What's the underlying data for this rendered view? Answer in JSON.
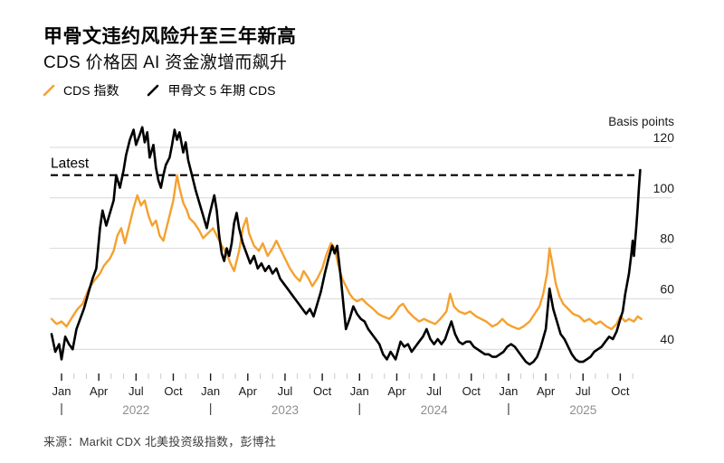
{
  "header": {
    "title": "甲骨文违约风险升至三年新高",
    "subtitle": "CDS 价格因 AI 资金激增而飙升"
  },
  "legend": [
    {
      "label": "CDS 指数",
      "color": "#F5A12F"
    },
    {
      "label": "甲骨文 5 年期 CDS",
      "color": "#000000"
    }
  ],
  "axis": {
    "unit_label": "Basis points",
    "y_ticks": [
      120,
      100,
      80,
      60,
      40
    ],
    "month_labels": [
      "Jan",
      "Apr",
      "Jul",
      "Oct",
      "Jan",
      "Apr",
      "Jul",
      "Oct",
      "Jan",
      "Apr",
      "Jul",
      "Oct",
      "Jan",
      "Apr",
      "Jul",
      "Oct"
    ],
    "year_labels": [
      "2022",
      "2023",
      "2024",
      "2025"
    ],
    "year_separator": "|"
  },
  "annotation": {
    "latest_label": "Latest"
  },
  "source": "来源：Markit CDX 北美投资级指数，彭博社",
  "colors": {
    "cds_index": "#F5A12F",
    "oracle_cds": "#000000",
    "gridline": "#d7d7d7",
    "minor_tick": "#c9c9c9",
    "major_tick": "#1a1a1a",
    "year_text": "#8f8f8f",
    "axis_text": "#1a1a1a"
  },
  "chart_data": {
    "type": "line",
    "title": "甲骨文违约风险升至三年新高",
    "subtitle": "CDS 价格因 AI 资金激增而飙升",
    "ylabel": "Basis points",
    "ylim": [
      30,
      130
    ],
    "x_unit": "months_since_2022-01",
    "x_range": [
      -0.8,
      46.7
    ],
    "x_tick_months": [
      "2022-01",
      "2022-04",
      "2022-07",
      "2022-10",
      "2023-01",
      "2023-04",
      "2023-07",
      "2023-10",
      "2024-01",
      "2024-04",
      "2024-07",
      "2024-10",
      "2025-01",
      "2025-04",
      "2025-07",
      "2025-10"
    ],
    "grid": true,
    "legend_position": "top-left",
    "latest_line": {
      "label": "Latest",
      "value": 109,
      "style": "dashed"
    },
    "series": [
      {
        "name": "CDS 指数",
        "color": "#F5A12F",
        "points": [
          [
            -0.8,
            52
          ],
          [
            -0.4,
            50
          ],
          [
            0.0,
            51
          ],
          [
            0.4,
            49
          ],
          [
            0.9,
            53
          ],
          [
            1.3,
            56
          ],
          [
            1.7,
            58
          ],
          [
            2.2,
            64
          ],
          [
            2.6,
            67
          ],
          [
            3.1,
            70
          ],
          [
            3.4,
            73
          ],
          [
            3.9,
            76
          ],
          [
            4.2,
            79
          ],
          [
            4.5,
            85
          ],
          [
            4.8,
            88
          ],
          [
            5.1,
            82
          ],
          [
            5.5,
            90
          ],
          [
            5.8,
            96
          ],
          [
            6.1,
            101
          ],
          [
            6.4,
            97
          ],
          [
            6.7,
            99
          ],
          [
            7.0,
            93
          ],
          [
            7.3,
            89
          ],
          [
            7.6,
            91
          ],
          [
            7.9,
            85
          ],
          [
            8.2,
            83
          ],
          [
            8.4,
            87
          ],
          [
            8.7,
            93
          ],
          [
            9.0,
            99
          ],
          [
            9.3,
            109
          ],
          [
            9.5,
            104
          ],
          [
            9.8,
            98
          ],
          [
            10.1,
            95
          ],
          [
            10.3,
            92
          ],
          [
            10.7,
            90
          ],
          [
            11.1,
            87
          ],
          [
            11.4,
            84
          ],
          [
            11.8,
            86
          ],
          [
            12.2,
            88
          ],
          [
            12.5,
            85
          ],
          [
            12.9,
            81
          ],
          [
            13.3,
            78
          ],
          [
            13.6,
            74
          ],
          [
            13.9,
            71
          ],
          [
            14.3,
            79
          ],
          [
            14.6,
            88
          ],
          [
            14.9,
            92
          ],
          [
            15.1,
            86
          ],
          [
            15.5,
            81
          ],
          [
            15.9,
            79
          ],
          [
            16.2,
            82
          ],
          [
            16.6,
            77
          ],
          [
            17.0,
            80
          ],
          [
            17.3,
            83
          ],
          [
            17.7,
            79
          ],
          [
            18.1,
            75
          ],
          [
            18.4,
            72
          ],
          [
            18.8,
            69
          ],
          [
            19.2,
            67
          ],
          [
            19.5,
            71
          ],
          [
            19.9,
            68
          ],
          [
            20.2,
            65
          ],
          [
            20.6,
            68
          ],
          [
            21.0,
            72
          ],
          [
            21.3,
            77
          ],
          [
            21.7,
            82
          ],
          [
            22.0,
            80
          ],
          [
            22.3,
            73
          ],
          [
            22.6,
            68
          ],
          [
            22.9,
            65
          ],
          [
            23.2,
            62
          ],
          [
            23.5,
            60
          ],
          [
            23.8,
            59
          ],
          [
            24.2,
            60
          ],
          [
            24.6,
            58
          ],
          [
            25.1,
            56
          ],
          [
            25.5,
            54
          ],
          [
            25.9,
            53
          ],
          [
            26.4,
            52
          ],
          [
            26.8,
            54
          ],
          [
            27.2,
            57
          ],
          [
            27.5,
            58
          ],
          [
            27.9,
            55
          ],
          [
            28.3,
            53
          ],
          [
            28.8,
            51
          ],
          [
            29.2,
            52
          ],
          [
            29.6,
            51
          ],
          [
            30.1,
            50
          ],
          [
            30.5,
            52
          ],
          [
            31.0,
            55
          ],
          [
            31.3,
            62
          ],
          [
            31.6,
            57
          ],
          [
            32.0,
            55
          ],
          [
            32.5,
            54
          ],
          [
            32.9,
            55
          ],
          [
            33.4,
            53
          ],
          [
            33.8,
            52
          ],
          [
            34.2,
            51
          ],
          [
            34.7,
            49
          ],
          [
            35.1,
            50
          ],
          [
            35.5,
            52
          ],
          [
            35.9,
            50
          ],
          [
            36.3,
            49
          ],
          [
            36.8,
            48
          ],
          [
            37.2,
            49
          ],
          [
            37.7,
            51
          ],
          [
            38.1,
            54
          ],
          [
            38.5,
            57
          ],
          [
            38.8,
            62
          ],
          [
            39.1,
            70
          ],
          [
            39.3,
            80
          ],
          [
            39.6,
            72
          ],
          [
            39.8,
            66
          ],
          [
            40.1,
            61
          ],
          [
            40.4,
            58
          ],
          [
            40.8,
            56
          ],
          [
            41.2,
            54
          ],
          [
            41.7,
            53
          ],
          [
            42.1,
            51
          ],
          [
            42.5,
            52
          ],
          [
            43.0,
            50
          ],
          [
            43.4,
            51
          ],
          [
            43.9,
            49
          ],
          [
            44.3,
            48
          ],
          [
            44.7,
            50
          ],
          [
            45.0,
            53
          ],
          [
            45.4,
            51
          ],
          [
            45.7,
            52
          ],
          [
            46.1,
            51
          ],
          [
            46.4,
            53
          ],
          [
            46.7,
            52
          ]
        ]
      },
      {
        "name": "甲骨文 5 年期 CDS",
        "color": "#000000",
        "points": [
          [
            -0.8,
            46
          ],
          [
            -0.5,
            39
          ],
          [
            -0.2,
            42
          ],
          [
            0.0,
            36
          ],
          [
            0.3,
            45
          ],
          [
            0.6,
            42
          ],
          [
            0.9,
            40
          ],
          [
            1.2,
            48
          ],
          [
            1.5,
            52
          ],
          [
            1.8,
            56
          ],
          [
            2.2,
            63
          ],
          [
            2.5,
            68
          ],
          [
            2.8,
            72
          ],
          [
            3.1,
            88
          ],
          [
            3.3,
            95
          ],
          [
            3.6,
            89
          ],
          [
            3.9,
            94
          ],
          [
            4.2,
            99
          ],
          [
            4.4,
            109
          ],
          [
            4.7,
            104
          ],
          [
            5.0,
            111
          ],
          [
            5.2,
            117
          ],
          [
            5.5,
            123
          ],
          [
            5.8,
            127
          ],
          [
            6.0,
            121
          ],
          [
            6.3,
            125
          ],
          [
            6.5,
            128
          ],
          [
            6.7,
            122
          ],
          [
            6.9,
            126
          ],
          [
            7.1,
            116
          ],
          [
            7.4,
            121
          ],
          [
            7.6,
            112
          ],
          [
            7.8,
            107
          ],
          [
            8.0,
            104
          ],
          [
            8.2,
            109
          ],
          [
            8.4,
            113
          ],
          [
            8.7,
            116
          ],
          [
            8.9,
            121
          ],
          [
            9.1,
            127
          ],
          [
            9.3,
            123
          ],
          [
            9.5,
            126
          ],
          [
            9.8,
            118
          ],
          [
            10.0,
            122
          ],
          [
            10.2,
            115
          ],
          [
            10.5,
            109
          ],
          [
            10.8,
            103
          ],
          [
            11.1,
            98
          ],
          [
            11.4,
            93
          ],
          [
            11.7,
            88
          ],
          [
            11.9,
            93
          ],
          [
            12.1,
            97
          ],
          [
            12.3,
            101
          ],
          [
            12.5,
            95
          ],
          [
            12.7,
            85
          ],
          [
            12.9,
            78
          ],
          [
            13.1,
            75
          ],
          [
            13.3,
            80
          ],
          [
            13.5,
            77
          ],
          [
            13.7,
            82
          ],
          [
            13.9,
            90
          ],
          [
            14.1,
            94
          ],
          [
            14.3,
            88
          ],
          [
            14.6,
            82
          ],
          [
            14.9,
            78
          ],
          [
            15.2,
            74
          ],
          [
            15.5,
            77
          ],
          [
            15.8,
            72
          ],
          [
            16.1,
            74
          ],
          [
            16.4,
            71
          ],
          [
            16.7,
            73
          ],
          [
            17.0,
            70
          ],
          [
            17.3,
            72
          ],
          [
            17.6,
            68
          ],
          [
            17.9,
            66
          ],
          [
            18.2,
            64
          ],
          [
            18.5,
            62
          ],
          [
            18.8,
            60
          ],
          [
            19.1,
            58
          ],
          [
            19.4,
            56
          ],
          [
            19.7,
            54
          ],
          [
            20.0,
            56
          ],
          [
            20.3,
            53
          ],
          [
            20.6,
            58
          ],
          [
            20.9,
            63
          ],
          [
            21.2,
            70
          ],
          [
            21.5,
            76
          ],
          [
            21.8,
            81
          ],
          [
            22.0,
            78
          ],
          [
            22.2,
            81
          ],
          [
            22.5,
            68
          ],
          [
            22.7,
            58
          ],
          [
            22.9,
            48
          ],
          [
            23.2,
            52
          ],
          [
            23.5,
            57
          ],
          [
            23.8,
            54
          ],
          [
            24.1,
            52
          ],
          [
            24.4,
            51
          ],
          [
            24.7,
            48
          ],
          [
            25.0,
            46
          ],
          [
            25.3,
            44
          ],
          [
            25.6,
            42
          ],
          [
            25.9,
            38
          ],
          [
            26.2,
            36
          ],
          [
            26.5,
            39
          ],
          [
            26.9,
            36
          ],
          [
            27.3,
            43
          ],
          [
            27.6,
            41
          ],
          [
            27.9,
            42
          ],
          [
            28.2,
            39
          ],
          [
            28.5,
            41
          ],
          [
            28.8,
            43
          ],
          [
            29.1,
            45
          ],
          [
            29.4,
            48
          ],
          [
            29.7,
            44
          ],
          [
            30.0,
            42
          ],
          [
            30.3,
            44
          ],
          [
            30.6,
            42
          ],
          [
            30.9,
            44
          ],
          [
            31.1,
            47
          ],
          [
            31.4,
            51
          ],
          [
            31.7,
            46
          ],
          [
            32.0,
            43
          ],
          [
            32.3,
            42
          ],
          [
            32.6,
            43
          ],
          [
            32.9,
            43
          ],
          [
            33.2,
            41
          ],
          [
            33.5,
            40
          ],
          [
            33.8,
            39
          ],
          [
            34.1,
            38
          ],
          [
            34.4,
            38
          ],
          [
            34.7,
            37
          ],
          [
            35.0,
            37
          ],
          [
            35.3,
            38
          ],
          [
            35.6,
            39
          ],
          [
            35.9,
            41
          ],
          [
            36.2,
            42
          ],
          [
            36.5,
            41
          ],
          [
            36.8,
            39
          ],
          [
            37.1,
            37
          ],
          [
            37.4,
            35
          ],
          [
            37.7,
            34
          ],
          [
            38.0,
            35
          ],
          [
            38.3,
            37
          ],
          [
            38.6,
            41
          ],
          [
            39.0,
            48
          ],
          [
            39.3,
            64
          ],
          [
            39.6,
            56
          ],
          [
            39.9,
            51
          ],
          [
            40.2,
            46
          ],
          [
            40.5,
            44
          ],
          [
            40.8,
            41
          ],
          [
            41.1,
            38
          ],
          [
            41.4,
            36
          ],
          [
            41.7,
            35
          ],
          [
            42.0,
            35
          ],
          [
            42.3,
            36
          ],
          [
            42.6,
            37
          ],
          [
            42.9,
            39
          ],
          [
            43.2,
            40
          ],
          [
            43.5,
            41
          ],
          [
            43.8,
            43
          ],
          [
            44.1,
            45
          ],
          [
            44.4,
            44
          ],
          [
            44.7,
            47
          ],
          [
            45.0,
            52
          ],
          [
            45.2,
            55
          ],
          [
            45.4,
            62
          ],
          [
            45.7,
            70
          ],
          [
            45.9,
            78
          ],
          [
            46.0,
            83
          ],
          [
            46.1,
            77
          ],
          [
            46.3,
            89
          ],
          [
            46.4,
            96
          ],
          [
            46.5,
            104
          ],
          [
            46.6,
            111
          ]
        ]
      }
    ]
  }
}
